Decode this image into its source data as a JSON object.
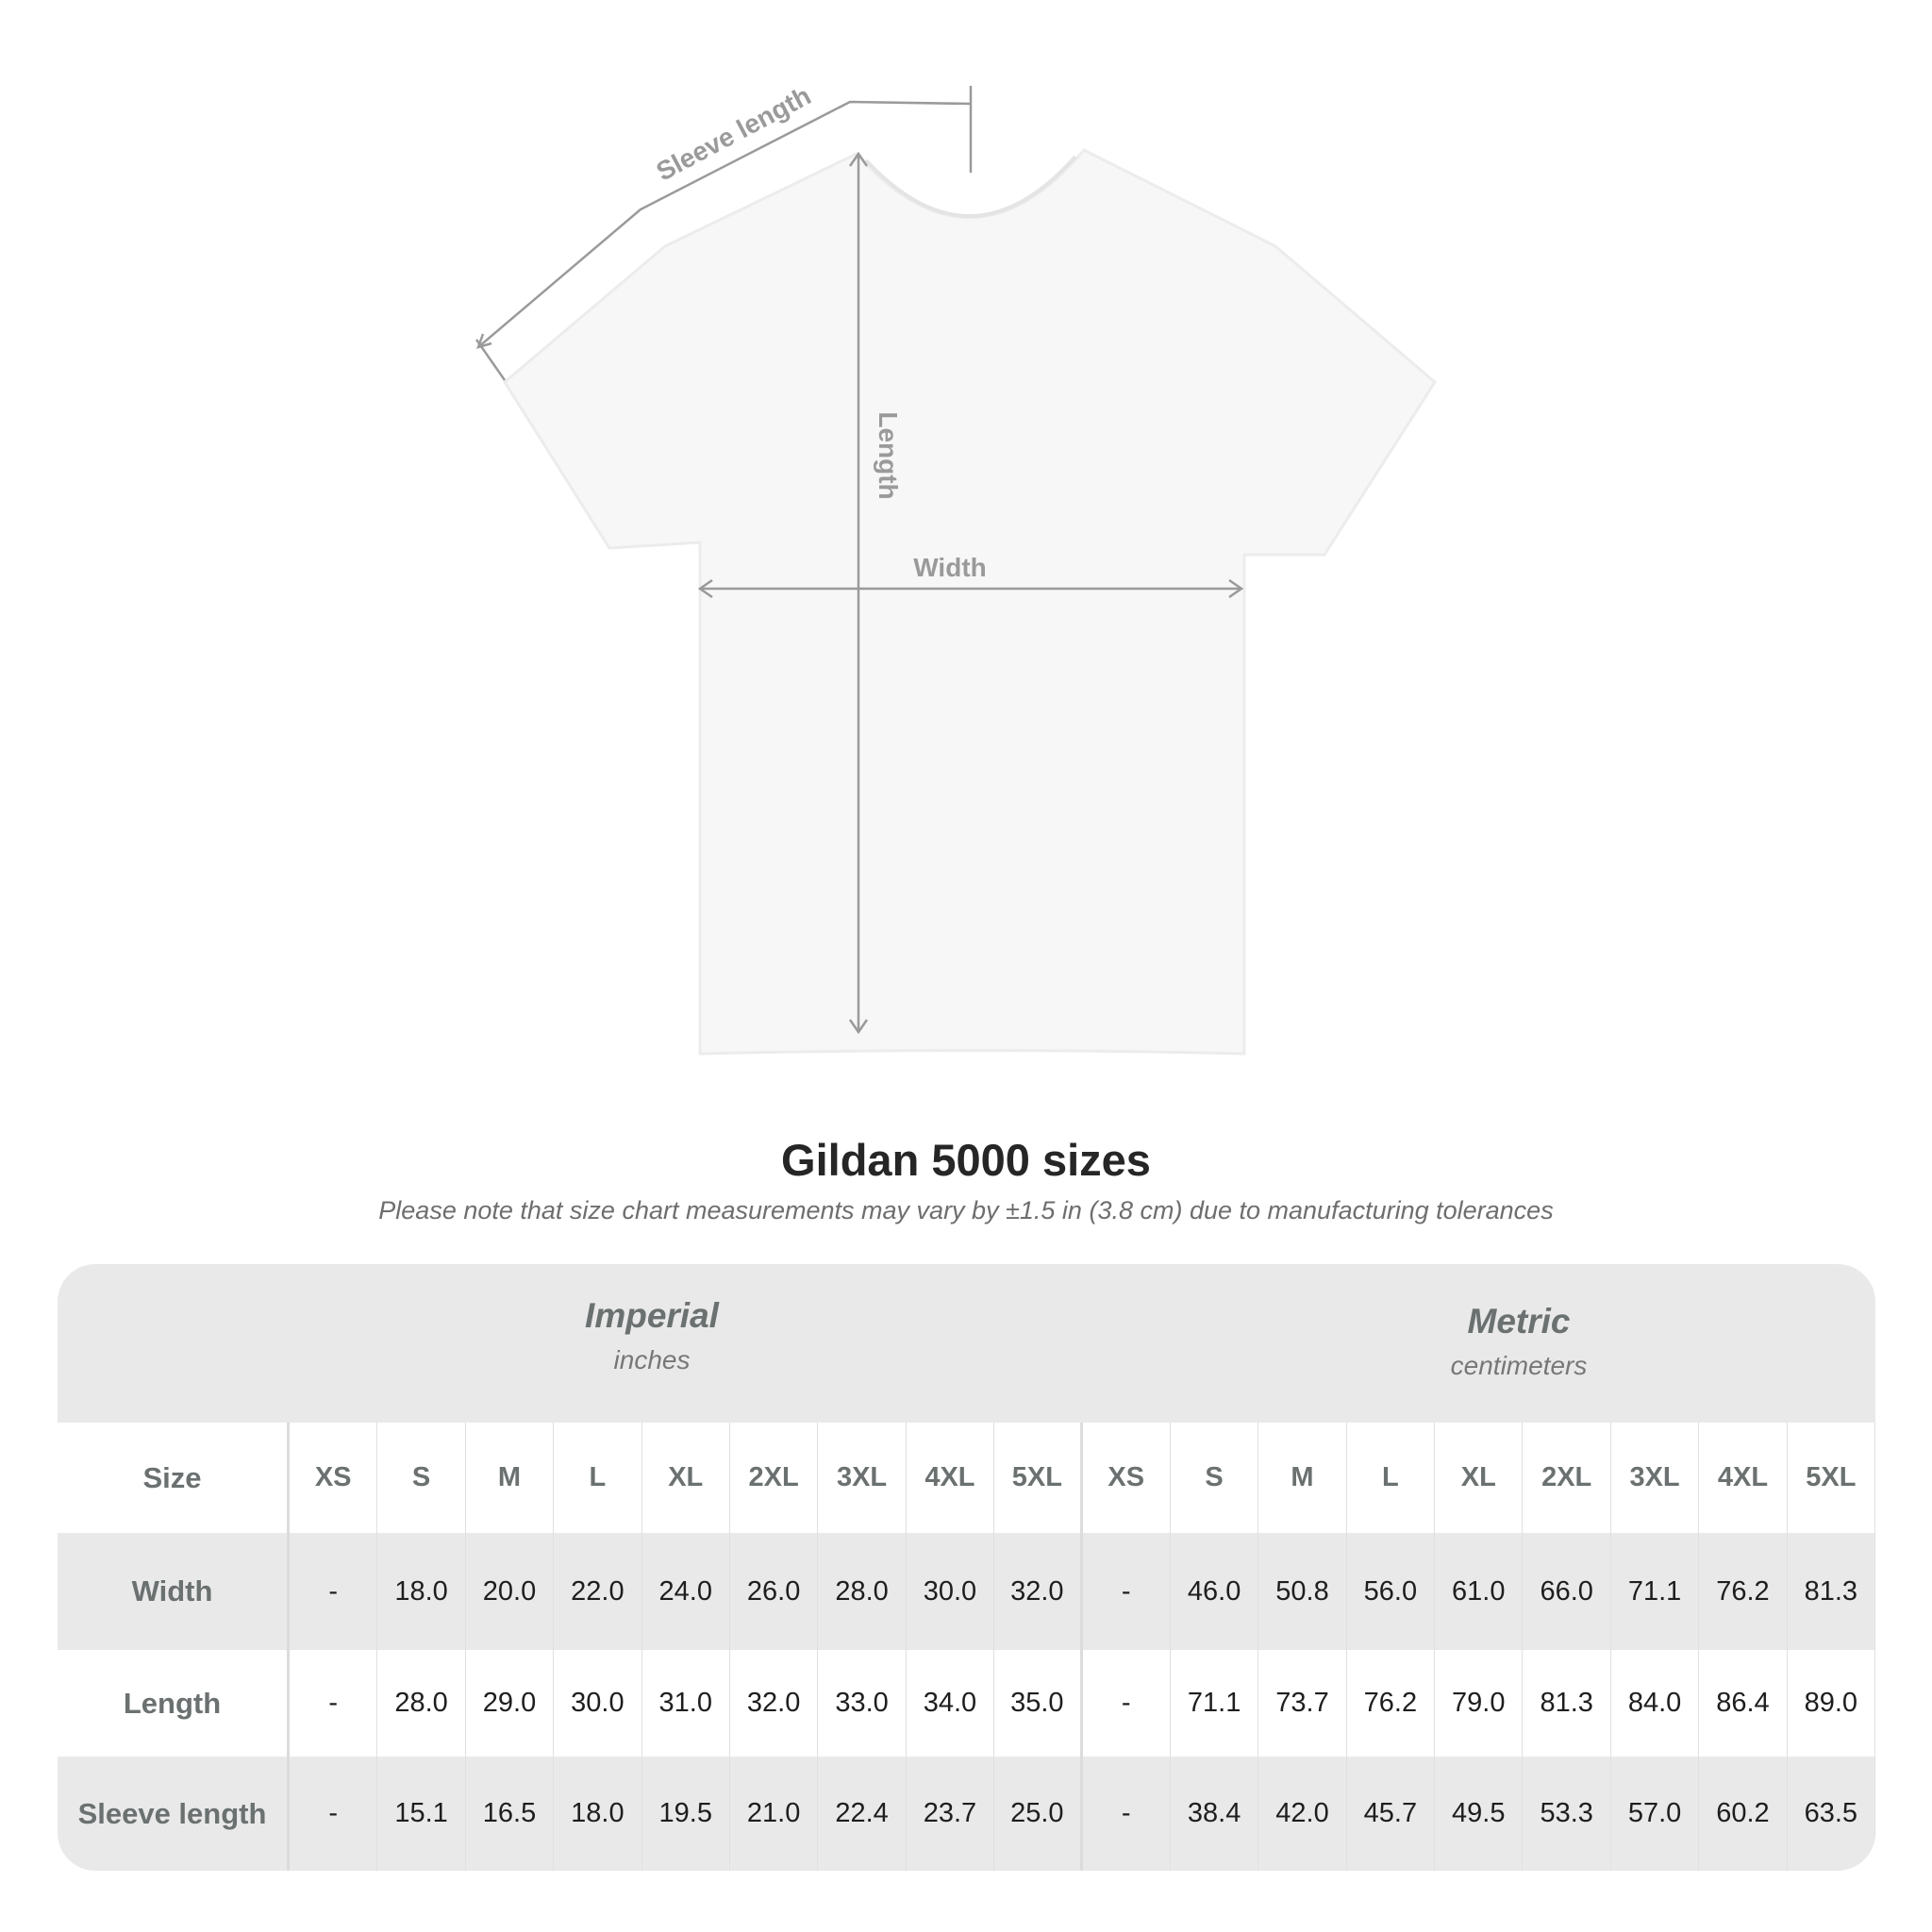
{
  "diagram": {
    "labels": {
      "sleeve": "Sleeve length",
      "length": "Length",
      "width": "Width"
    },
    "line_color": "#9a9a9a"
  },
  "title": "Gildan 5000 sizes",
  "note": "Please note that size chart measurements may vary by ±1.5 in (3.8 cm) due to manufacturing tolerances",
  "table": {
    "imperial": {
      "title": "Imperial",
      "unit": "inches"
    },
    "metric": {
      "title": "Metric",
      "unit": "centimeters"
    },
    "size_label": "Size",
    "sizes": [
      "XS",
      "S",
      "M",
      "L",
      "XL",
      "2XL",
      "3XL",
      "4XL",
      "5XL"
    ],
    "rows": [
      {
        "label": "Width",
        "imperial": [
          "-",
          "18.0",
          "20.0",
          "22.0",
          "24.0",
          "26.0",
          "28.0",
          "30.0",
          "32.0"
        ],
        "metric": [
          "-",
          "46.0",
          "50.8",
          "56.0",
          "61.0",
          "66.0",
          "71.1",
          "76.2",
          "81.3"
        ]
      },
      {
        "label": "Length",
        "imperial": [
          "-",
          "28.0",
          "29.0",
          "30.0",
          "31.0",
          "32.0",
          "33.0",
          "34.0",
          "35.0"
        ],
        "metric": [
          "-",
          "71.1",
          "73.7",
          "76.2",
          "79.0",
          "81.3",
          "84.0",
          "86.4",
          "89.0"
        ]
      },
      {
        "label": "Sleeve length",
        "imperial": [
          "-",
          "15.1",
          "16.5",
          "18.0",
          "19.5",
          "21.0",
          "22.4",
          "23.7",
          "25.0"
        ],
        "metric": [
          "-",
          "38.4",
          "42.0",
          "45.7",
          "49.5",
          "53.3",
          "57.0",
          "60.2",
          "63.5"
        ]
      }
    ],
    "colors": {
      "header_bg": "#e9e9e9",
      "label_text": "#6b7070",
      "value_text": "#1e1e1e"
    }
  }
}
